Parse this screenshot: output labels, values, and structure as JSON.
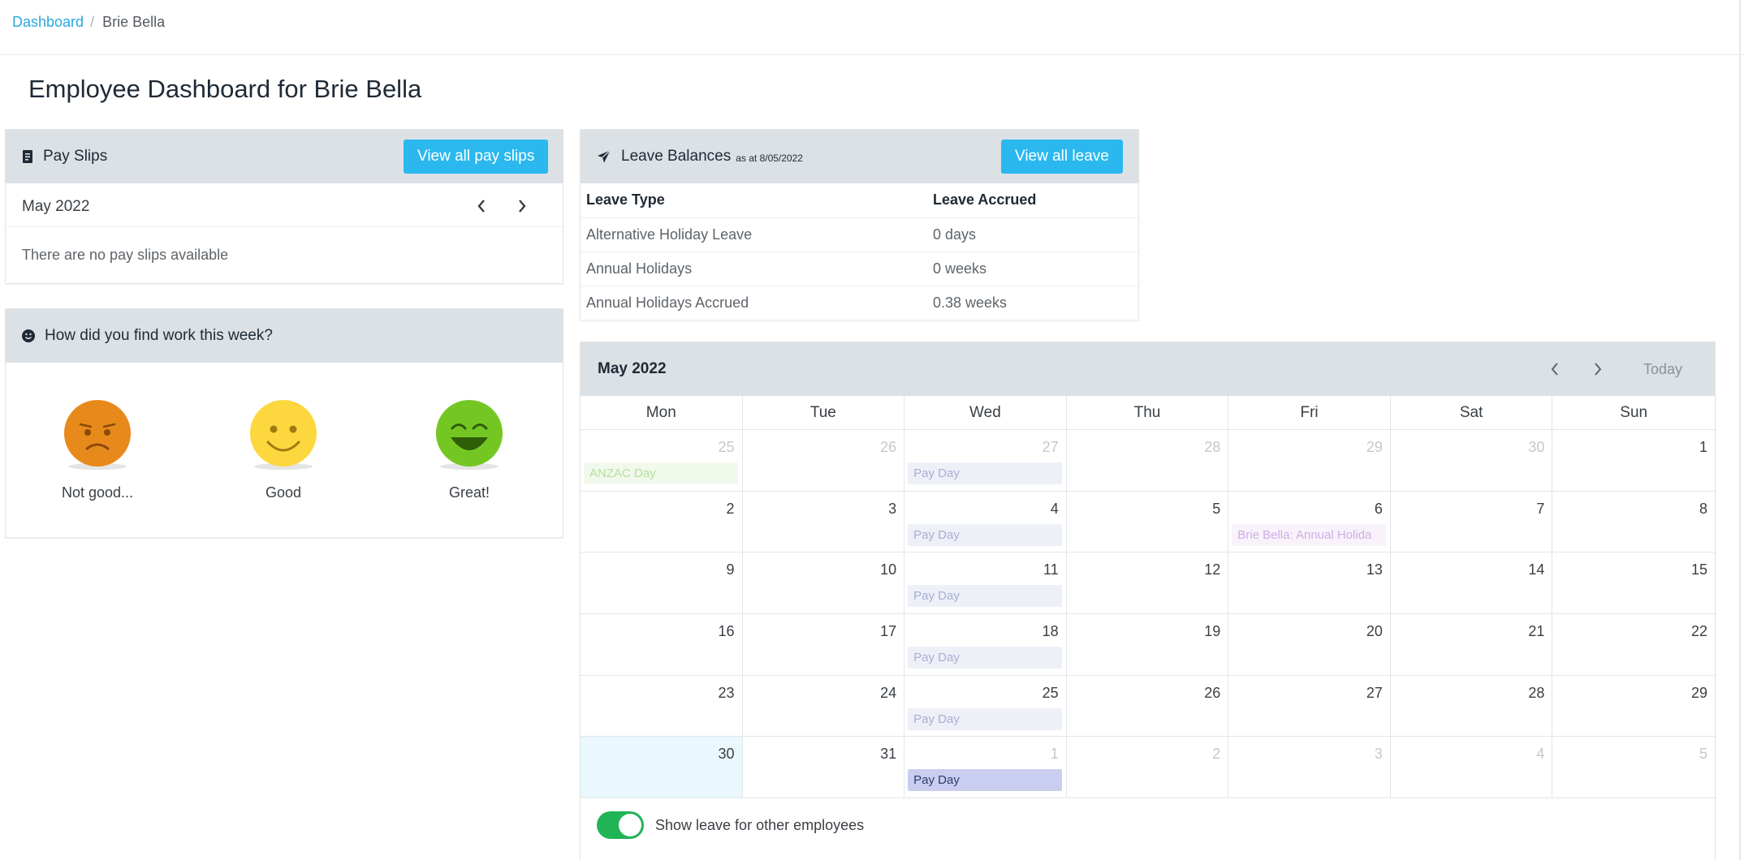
{
  "breadcrumb": {
    "home": "Dashboard",
    "sep": "/",
    "current": "Brie Bella"
  },
  "page": {
    "title": "Employee Dashboard for Brie Bella"
  },
  "payslips": {
    "title": "Pay Slips",
    "button": "View all pay slips",
    "month": "May 2022",
    "empty": "There are no pay slips available"
  },
  "mood": {
    "title": "How did you find work this week?",
    "options": [
      {
        "label": "Not good...",
        "color": "#e8891c"
      },
      {
        "label": "Good",
        "color": "#fcd73e"
      },
      {
        "label": "Great!",
        "color": "#74c723"
      }
    ]
  },
  "leave": {
    "title": "Leave Balances",
    "as_at": "as at 8/05/2022",
    "button": "View all leave",
    "headers": [
      "Leave Type",
      "Leave Accrued"
    ],
    "rows": [
      [
        "Alternative Holiday Leave",
        "0 days"
      ],
      [
        "Annual Holidays",
        "0 weeks"
      ],
      [
        "Annual Holidays Accrued",
        "0.38 weeks"
      ]
    ]
  },
  "calendar": {
    "month": "May 2022",
    "today_label": "Today",
    "days": [
      "Mon",
      "Tue",
      "Wed",
      "Thu",
      "Fri",
      "Sat",
      "Sun"
    ],
    "weeks": [
      [
        {
          "n": "25",
          "other": true,
          "event": "ANZAC Day",
          "type": "anzac"
        },
        {
          "n": "26",
          "other": true
        },
        {
          "n": "27",
          "other": true,
          "event": "Pay Day",
          "type": "pay"
        },
        {
          "n": "28",
          "other": true
        },
        {
          "n": "29",
          "other": true
        },
        {
          "n": "30",
          "other": true
        },
        {
          "n": "1"
        }
      ],
      [
        {
          "n": "2"
        },
        {
          "n": "3"
        },
        {
          "n": "4",
          "event": "Pay Day",
          "type": "pay"
        },
        {
          "n": "5"
        },
        {
          "n": "6",
          "event": "Brie Bella: Annual Holida",
          "type": "leave"
        },
        {
          "n": "7"
        },
        {
          "n": "8"
        }
      ],
      [
        {
          "n": "9"
        },
        {
          "n": "10"
        },
        {
          "n": "11",
          "event": "Pay Day",
          "type": "pay"
        },
        {
          "n": "12"
        },
        {
          "n": "13"
        },
        {
          "n": "14"
        },
        {
          "n": "15"
        }
      ],
      [
        {
          "n": "16"
        },
        {
          "n": "17"
        },
        {
          "n": "18",
          "event": "Pay Day",
          "type": "pay"
        },
        {
          "n": "19"
        },
        {
          "n": "20"
        },
        {
          "n": "21"
        },
        {
          "n": "22"
        }
      ],
      [
        {
          "n": "23"
        },
        {
          "n": "24"
        },
        {
          "n": "25",
          "event": "Pay Day",
          "type": "pay"
        },
        {
          "n": "26"
        },
        {
          "n": "27"
        },
        {
          "n": "28"
        },
        {
          "n": "29"
        }
      ],
      [
        {
          "n": "30",
          "today": true
        },
        {
          "n": "31"
        },
        {
          "n": "1",
          "other": true,
          "event": "Pay Day",
          "type": "pay-active"
        },
        {
          "n": "2",
          "other": true
        },
        {
          "n": "3",
          "other": true
        },
        {
          "n": "4",
          "other": true
        },
        {
          "n": "5",
          "other": true
        }
      ]
    ],
    "toggle_label": "Show leave for other employees",
    "toggle_on": true
  },
  "colors": {
    "accent": "#2ab8ef",
    "link": "#29a8df",
    "toggle": "#21b456",
    "header_bg": "#dbe1e5"
  }
}
